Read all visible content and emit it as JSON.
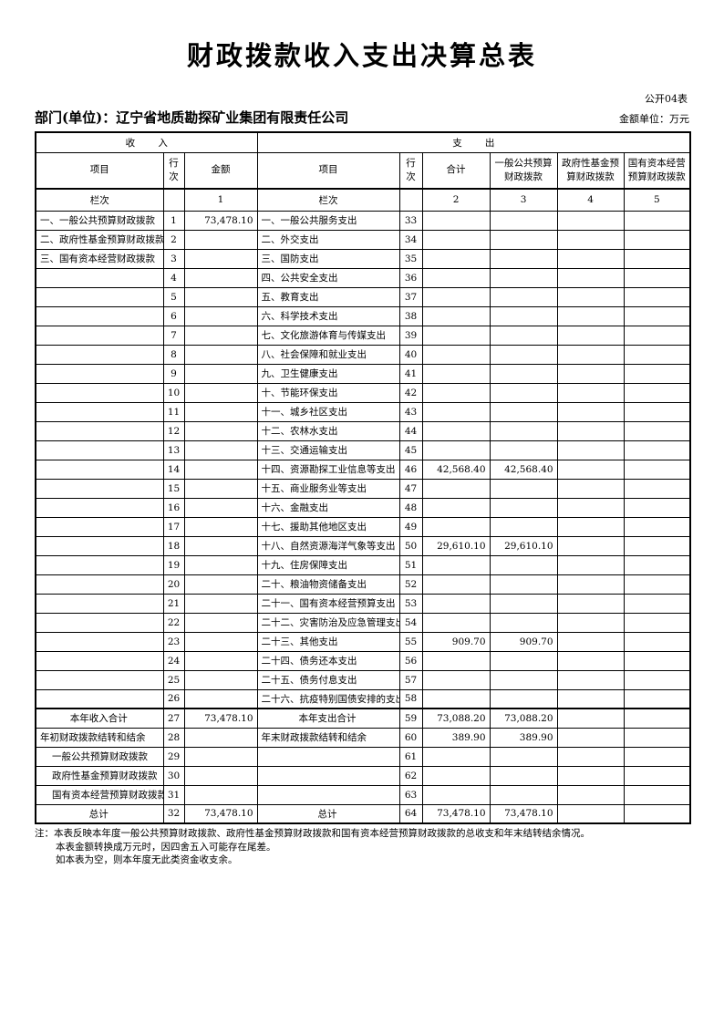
{
  "page": {
    "title": "财政拨款收入支出决算总表",
    "table_code": "公开04表",
    "department": "部门(单位)：辽宁省地质勘探矿业集团有限责任公司",
    "unit_note": "金额单位：万元"
  },
  "table": {
    "section_income": "收入",
    "section_expense": "支出",
    "columns": [
      "项目",
      "行次",
      "金额",
      "项目",
      "行次",
      "合计",
      "一般公共预算财政拨款",
      "政府性基金预算财政拨款",
      "国有资本经营预算财政拨款"
    ],
    "lanci_row": [
      "栏次",
      "",
      "1",
      "栏次",
      "",
      "2",
      "3",
      "4",
      "5"
    ],
    "rows": [
      {
        "income_item": "一、一般公共预算财政拨款",
        "income_align": "left",
        "income_line": "1",
        "income_amount": "73,478.10",
        "expense_item": "一、一般公共服务支出",
        "expense_align": "left",
        "expense_line": "33",
        "total": "",
        "general_budget": "",
        "gov_fund": "",
        "state_capital": ""
      },
      {
        "income_item": "二、政府性基金预算财政拨款",
        "income_align": "left",
        "income_line": "2",
        "income_amount": "",
        "expense_item": "二、外交支出",
        "expense_align": "left",
        "expense_line": "34",
        "total": "",
        "general_budget": "",
        "gov_fund": "",
        "state_capital": ""
      },
      {
        "income_item": "三、国有资本经营财政拨款",
        "income_align": "left",
        "income_line": "3",
        "income_amount": "",
        "expense_item": "三、国防支出",
        "expense_align": "left",
        "expense_line": "35",
        "total": "",
        "general_budget": "",
        "gov_fund": "",
        "state_capital": ""
      },
      {
        "income_item": "",
        "income_align": "left",
        "income_line": "4",
        "income_amount": "",
        "expense_item": "四、公共安全支出",
        "expense_align": "left",
        "expense_line": "36",
        "total": "",
        "general_budget": "",
        "gov_fund": "",
        "state_capital": ""
      },
      {
        "income_item": "",
        "income_align": "left",
        "income_line": "5",
        "income_amount": "",
        "expense_item": "五、教育支出",
        "expense_align": "left",
        "expense_line": "37",
        "total": "",
        "general_budget": "",
        "gov_fund": "",
        "state_capital": ""
      },
      {
        "income_item": "",
        "income_align": "left",
        "income_line": "6",
        "income_amount": "",
        "expense_item": "六、科学技术支出",
        "expense_align": "left",
        "expense_line": "38",
        "total": "",
        "general_budget": "",
        "gov_fund": "",
        "state_capital": ""
      },
      {
        "income_item": "",
        "income_align": "left",
        "income_line": "7",
        "income_amount": "",
        "expense_item": "七、文化旅游体育与传媒支出",
        "expense_align": "left",
        "expense_line": "39",
        "total": "",
        "general_budget": "",
        "gov_fund": "",
        "state_capital": ""
      },
      {
        "income_item": "",
        "income_align": "left",
        "income_line": "8",
        "income_amount": "",
        "expense_item": "八、社会保障和就业支出",
        "expense_align": "left",
        "expense_line": "40",
        "total": "",
        "general_budget": "",
        "gov_fund": "",
        "state_capital": ""
      },
      {
        "income_item": "",
        "income_align": "left",
        "income_line": "9",
        "income_amount": "",
        "expense_item": "九、卫生健康支出",
        "expense_align": "left",
        "expense_line": "41",
        "total": "",
        "general_budget": "",
        "gov_fund": "",
        "state_capital": ""
      },
      {
        "income_item": "",
        "income_align": "left",
        "income_line": "10",
        "income_amount": "",
        "expense_item": "十、节能环保支出",
        "expense_align": "left",
        "expense_line": "42",
        "total": "",
        "general_budget": "",
        "gov_fund": "",
        "state_capital": ""
      },
      {
        "income_item": "",
        "income_align": "left",
        "income_line": "11",
        "income_amount": "",
        "expense_item": "十一、城乡社区支出",
        "expense_align": "left",
        "expense_line": "43",
        "total": "",
        "general_budget": "",
        "gov_fund": "",
        "state_capital": ""
      },
      {
        "income_item": "",
        "income_align": "left",
        "income_line": "12",
        "income_amount": "",
        "expense_item": "十二、农林水支出",
        "expense_align": "left",
        "expense_line": "44",
        "total": "",
        "general_budget": "",
        "gov_fund": "",
        "state_capital": ""
      },
      {
        "income_item": "",
        "income_align": "left",
        "income_line": "13",
        "income_amount": "",
        "expense_item": "十三、交通运输支出",
        "expense_align": "left",
        "expense_line": "45",
        "total": "",
        "general_budget": "",
        "gov_fund": "",
        "state_capital": ""
      },
      {
        "income_item": "",
        "income_align": "left",
        "income_line": "14",
        "income_amount": "",
        "expense_item": "十四、资源勘探工业信息等支出",
        "expense_align": "left",
        "expense_line": "46",
        "total": "42,568.40",
        "general_budget": "42,568.40",
        "gov_fund": "",
        "state_capital": ""
      },
      {
        "income_item": "",
        "income_align": "left",
        "income_line": "15",
        "income_amount": "",
        "expense_item": "十五、商业服务业等支出",
        "expense_align": "left",
        "expense_line": "47",
        "total": "",
        "general_budget": "",
        "gov_fund": "",
        "state_capital": ""
      },
      {
        "income_item": "",
        "income_align": "left",
        "income_line": "16",
        "income_amount": "",
        "expense_item": "十六、金融支出",
        "expense_align": "left",
        "expense_line": "48",
        "total": "",
        "general_budget": "",
        "gov_fund": "",
        "state_capital": ""
      },
      {
        "income_item": "",
        "income_align": "left",
        "income_line": "17",
        "income_amount": "",
        "expense_item": "十七、援助其他地区支出",
        "expense_align": "left",
        "expense_line": "49",
        "total": "",
        "general_budget": "",
        "gov_fund": "",
        "state_capital": ""
      },
      {
        "income_item": "",
        "income_align": "left",
        "income_line": "18",
        "income_amount": "",
        "expense_item": "十八、自然资源海洋气象等支出",
        "expense_align": "left",
        "expense_line": "50",
        "total": "29,610.10",
        "general_budget": "29,610.10",
        "gov_fund": "",
        "state_capital": ""
      },
      {
        "income_item": "",
        "income_align": "left",
        "income_line": "19",
        "income_amount": "",
        "expense_item": "十九、住房保障支出",
        "expense_align": "left",
        "expense_line": "51",
        "total": "",
        "general_budget": "",
        "gov_fund": "",
        "state_capital": ""
      },
      {
        "income_item": "",
        "income_align": "left",
        "income_line": "20",
        "income_amount": "",
        "expense_item": "二十、粮油物资储备支出",
        "expense_align": "left",
        "expense_line": "52",
        "total": "",
        "general_budget": "",
        "gov_fund": "",
        "state_capital": ""
      },
      {
        "income_item": "",
        "income_align": "left",
        "income_line": "21",
        "income_amount": "",
        "expense_item": "二十一、国有资本经营预算支出",
        "expense_align": "left",
        "expense_line": "53",
        "total": "",
        "general_budget": "",
        "gov_fund": "",
        "state_capital": ""
      },
      {
        "income_item": "",
        "income_align": "left",
        "income_line": "22",
        "income_amount": "",
        "expense_item": "二十二、灾害防治及应急管理支出",
        "expense_align": "left",
        "expense_line": "54",
        "total": "",
        "general_budget": "",
        "gov_fund": "",
        "state_capital": ""
      },
      {
        "income_item": "",
        "income_align": "left",
        "income_line": "23",
        "income_amount": "",
        "expense_item": "二十三、其他支出",
        "expense_align": "left",
        "expense_line": "55",
        "total": "909.70",
        "general_budget": "909.70",
        "gov_fund": "",
        "state_capital": ""
      },
      {
        "income_item": "",
        "income_align": "left",
        "income_line": "24",
        "income_amount": "",
        "expense_item": "二十四、债务还本支出",
        "expense_align": "left",
        "expense_line": "56",
        "total": "",
        "general_budget": "",
        "gov_fund": "",
        "state_capital": ""
      },
      {
        "income_item": "",
        "income_align": "left",
        "income_line": "25",
        "income_amount": "",
        "expense_item": "二十五、债务付息支出",
        "expense_align": "left",
        "expense_line": "57",
        "total": "",
        "general_budget": "",
        "gov_fund": "",
        "state_capital": ""
      },
      {
        "income_item": "",
        "income_align": "left",
        "income_line": "26",
        "income_amount": "",
        "expense_item": "二十六、抗疫特别国债安排的支出",
        "expense_align": "left",
        "expense_line": "58",
        "total": "",
        "general_budget": "",
        "gov_fund": "",
        "state_capital": ""
      },
      {
        "income_item": "本年收入合计",
        "income_align": "center",
        "income_line": "27",
        "income_amount": "73,478.10",
        "expense_item": "本年支出合计",
        "expense_align": "center",
        "expense_line": "59",
        "total": "73,088.20",
        "general_budget": "73,088.20",
        "gov_fund": "",
        "state_capital": "",
        "thick_top": true
      },
      {
        "income_item": "年初财政拨款结转和结余",
        "income_align": "left",
        "income_line": "28",
        "income_amount": "",
        "expense_item": "年末财政拨款结转和结余",
        "expense_align": "left",
        "expense_line": "60",
        "total": "389.90",
        "general_budget": "389.90",
        "gov_fund": "",
        "state_capital": ""
      },
      {
        "income_item": "一般公共预算财政拨款",
        "income_align": "indent",
        "income_line": "29",
        "income_amount": "",
        "expense_item": "",
        "expense_align": "left",
        "expense_line": "61",
        "total": "",
        "general_budget": "",
        "gov_fund": "",
        "state_capital": ""
      },
      {
        "income_item": "政府性基金预算财政拨款",
        "income_align": "indent",
        "income_line": "30",
        "income_amount": "",
        "expense_item": "",
        "expense_align": "left",
        "expense_line": "62",
        "total": "",
        "general_budget": "",
        "gov_fund": "",
        "state_capital": ""
      },
      {
        "income_item": "国有资本经营预算财政拨款",
        "income_align": "indent",
        "income_line": "31",
        "income_amount": "",
        "expense_item": "",
        "expense_align": "left",
        "expense_line": "63",
        "total": "",
        "general_budget": "",
        "gov_fund": "",
        "state_capital": ""
      },
      {
        "income_item": "总计",
        "income_align": "center",
        "income_line": "32",
        "income_amount": "73,478.10",
        "expense_item": "总计",
        "expense_align": "center",
        "expense_line": "64",
        "total": "73,478.10",
        "general_budget": "73,478.10",
        "gov_fund": "",
        "state_capital": ""
      }
    ]
  },
  "notes": [
    "注：本表反映本年度一般公共预算财政拨款、政府性基金预算财政拨款和国有资本经营预算财政拨款的总收支和年末结转结余情况。",
    "本表金额转换成万元时，因四舍五入可能存在尾差。",
    "如本表为空，则本年度无此类资金收支余。"
  ]
}
